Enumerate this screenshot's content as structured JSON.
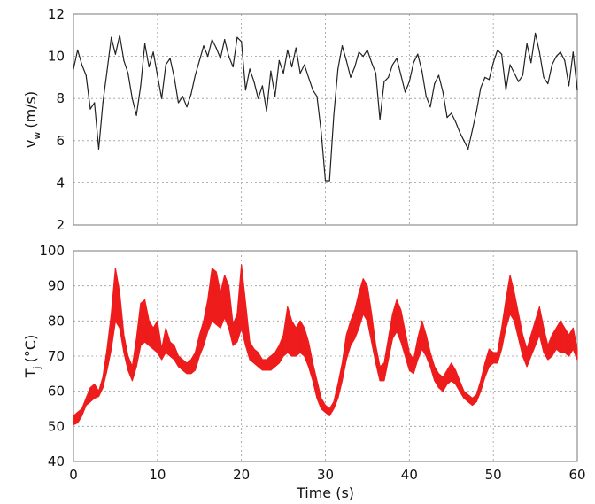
{
  "chart_data": [
    {
      "type": "line",
      "title": "",
      "ylabel": "v",
      "ylabel_sub": "w",
      "ylabel_unit": "(m/s)",
      "xlabel": "",
      "xlim": [
        0,
        60
      ],
      "ylim": [
        2,
        12
      ],
      "xticks": [
        "0",
        "10",
        "20",
        "30",
        "40",
        "50",
        "60"
      ],
      "yticks": [
        "2",
        "4",
        "6",
        "8",
        "10",
        "12"
      ],
      "grid": true,
      "series": [
        {
          "color": "#222222",
          "x": [
            0,
            0.5,
            1,
            1.5,
            2,
            2.5,
            3,
            3.5,
            4,
            4.5,
            5,
            5.5,
            6,
            6.5,
            7,
            7.5,
            8,
            8.5,
            9,
            9.5,
            10,
            10.5,
            11,
            11.5,
            12,
            12.5,
            13,
            13.5,
            14,
            14.5,
            15,
            15.5,
            16,
            16.5,
            17,
            17.5,
            18,
            18.5,
            19,
            19.5,
            20,
            20.5,
            21,
            21.5,
            22,
            22.5,
            23,
            23.5,
            24,
            24.5,
            25,
            25.5,
            26,
            26.5,
            27,
            27.5,
            28,
            28.5,
            29,
            29.5,
            30,
            30.5,
            31,
            31.5,
            32,
            32.5,
            33,
            33.5,
            34,
            34.5,
            35,
            35.5,
            36,
            36.5,
            37,
            37.5,
            38,
            38.5,
            39,
            39.5,
            40,
            40.5,
            41,
            41.5,
            42,
            42.5,
            43,
            43.5,
            44,
            44.5,
            45,
            45.5,
            46,
            46.5,
            47,
            47.5,
            48,
            48.5,
            49,
            49.5,
            50,
            50.5,
            51,
            51.5,
            52,
            52.5,
            53,
            53.5,
            54,
            54.5,
            55,
            55.5,
            56,
            56.5,
            57,
            57.5,
            58,
            58.5,
            59,
            59.5,
            60
          ],
          "y": [
            9.4,
            10.3,
            9.6,
            9.1,
            7.5,
            7.8,
            5.6,
            7.8,
            9.3,
            10.9,
            10.1,
            11.0,
            9.8,
            9.2,
            8.0,
            7.2,
            8.6,
            10.6,
            9.5,
            10.2,
            9.1,
            8.0,
            9.6,
            9.9,
            9.0,
            7.8,
            8.1,
            7.6,
            8.2,
            9.1,
            9.8,
            10.5,
            10.0,
            10.8,
            10.4,
            9.9,
            10.8,
            10.0,
            9.5,
            10.9,
            10.7,
            8.4,
            9.4,
            8.8,
            8.0,
            8.6,
            7.4,
            9.3,
            8.1,
            9.8,
            9.2,
            10.3,
            9.5,
            10.4,
            9.2,
            9.6,
            9.0,
            8.4,
            8.1,
            6.4,
            4.1,
            4.1,
            7.2,
            9.4,
            10.5,
            9.8,
            9.0,
            9.5,
            10.2,
            10.0,
            10.3,
            9.7,
            9.2,
            7.0,
            8.8,
            9.0,
            9.6,
            9.9,
            9.1,
            8.3,
            8.8,
            9.7,
            10.1,
            9.3,
            8.1,
            7.6,
            8.7,
            9.1,
            8.3,
            7.1,
            7.3,
            6.9,
            6.4,
            6.0,
            5.6,
            6.5,
            7.4,
            8.5,
            9.0,
            8.9,
            9.7,
            10.3,
            10.1,
            8.4,
            9.6,
            9.2,
            8.8,
            9.1,
            10.6,
            9.7,
            11.1,
            10.2,
            9.0,
            8.7,
            9.6,
            10.0,
            10.2,
            9.8,
            8.6,
            10.2,
            8.4
          ]
        }
      ]
    },
    {
      "type": "area",
      "title": "",
      "ylabel": "T",
      "ylabel_sub": "j",
      "ylabel_unit": "(°C)",
      "xlabel": "Time (s)",
      "xlim": [
        0,
        60
      ],
      "ylim": [
        40,
        100
      ],
      "xticks": [
        "0",
        "10",
        "20",
        "30",
        "40",
        "50",
        "60"
      ],
      "yticks": [
        "40",
        "50",
        "60",
        "70",
        "80",
        "90",
        "100"
      ],
      "grid": true,
      "series": [
        {
          "color": "#ee1c1c",
          "x": [
            0,
            0.5,
            1,
            1.5,
            2,
            2.5,
            3,
            3.5,
            4,
            4.5,
            5,
            5.5,
            6,
            6.5,
            7,
            7.5,
            8,
            8.5,
            9,
            9.5,
            10,
            10.5,
            11,
            11.5,
            12,
            12.5,
            13,
            13.5,
            14,
            14.5,
            15,
            15.5,
            16,
            16.5,
            17,
            17.5,
            18,
            18.5,
            19,
            19.5,
            20,
            20.5,
            21,
            21.5,
            22,
            22.5,
            23,
            23.5,
            24,
            24.5,
            25,
            25.5,
            26,
            26.5,
            27,
            27.5,
            28,
            28.5,
            29,
            29.5,
            30,
            30.5,
            31,
            31.5,
            32,
            32.5,
            33,
            33.5,
            34,
            34.5,
            35,
            35.5,
            36,
            36.5,
            37,
            37.5,
            38,
            38.5,
            39,
            39.5,
            40,
            40.5,
            41,
            41.5,
            42,
            42.5,
            43,
            43.5,
            44,
            44.5,
            45,
            45.5,
            46,
            46.5,
            47,
            47.5,
            48,
            48.5,
            49,
            49.5,
            50,
            50.5,
            51,
            51.5,
            52,
            52.5,
            53,
            53.5,
            54,
            54.5,
            55,
            55.5,
            56,
            56.5,
            57,
            57.5,
            58,
            58.5,
            59,
            59.5,
            60
          ],
          "low": [
            50.5,
            51,
            53,
            56,
            57,
            58,
            58.5,
            61,
            66,
            72,
            80,
            78,
            71,
            66,
            63,
            67,
            73,
            74,
            73,
            72,
            71,
            69,
            71,
            70,
            69,
            67,
            66,
            65,
            65,
            66,
            70,
            73,
            77,
            80,
            79,
            78,
            81,
            78,
            73,
            74,
            78,
            73,
            69,
            68,
            67,
            66,
            66,
            66,
            67,
            68,
            70,
            71,
            70,
            70,
            71,
            70,
            67,
            63,
            58,
            55,
            54,
            53,
            55,
            58,
            63,
            69,
            73,
            75,
            78,
            82,
            80,
            74,
            68,
            63,
            63,
            69,
            75,
            77,
            74,
            70,
            66,
            65,
            69,
            72,
            70,
            67,
            63,
            61,
            60,
            62,
            63,
            62,
            60,
            58,
            57,
            56,
            57,
            60,
            64,
            67,
            68,
            68,
            72,
            78,
            82,
            80,
            75,
            70,
            67,
            70,
            73,
            76,
            71,
            69,
            70,
            72,
            71,
            71,
            70,
            72,
            69
          ],
          "high": [
            53,
            54,
            55,
            58,
            61,
            62,
            60,
            64,
            72,
            82,
            95,
            88,
            76,
            70,
            67,
            75,
            85,
            86,
            80,
            78,
            80,
            72,
            78,
            74,
            73,
            70,
            69,
            68,
            69,
            71,
            76,
            80,
            86,
            95,
            94,
            88,
            93,
            90,
            79,
            82,
            96,
            85,
            74,
            72,
            71,
            69,
            69,
            70,
            71,
            73,
            76,
            84,
            80,
            78,
            80,
            78,
            74,
            68,
            63,
            58,
            56,
            55,
            57,
            62,
            68,
            76,
            80,
            83,
            88,
            92,
            90,
            82,
            73,
            67,
            68,
            75,
            82,
            86,
            83,
            77,
            71,
            69,
            75,
            80,
            76,
            71,
            67,
            65,
            64,
            66,
            68,
            66,
            63,
            60,
            59,
            58,
            59,
            63,
            68,
            72,
            71,
            71,
            78,
            86,
            93,
            88,
            82,
            76,
            72,
            76,
            80,
            84,
            78,
            73,
            76,
            78,
            80,
            78,
            76,
            78,
            72
          ]
        }
      ]
    }
  ]
}
